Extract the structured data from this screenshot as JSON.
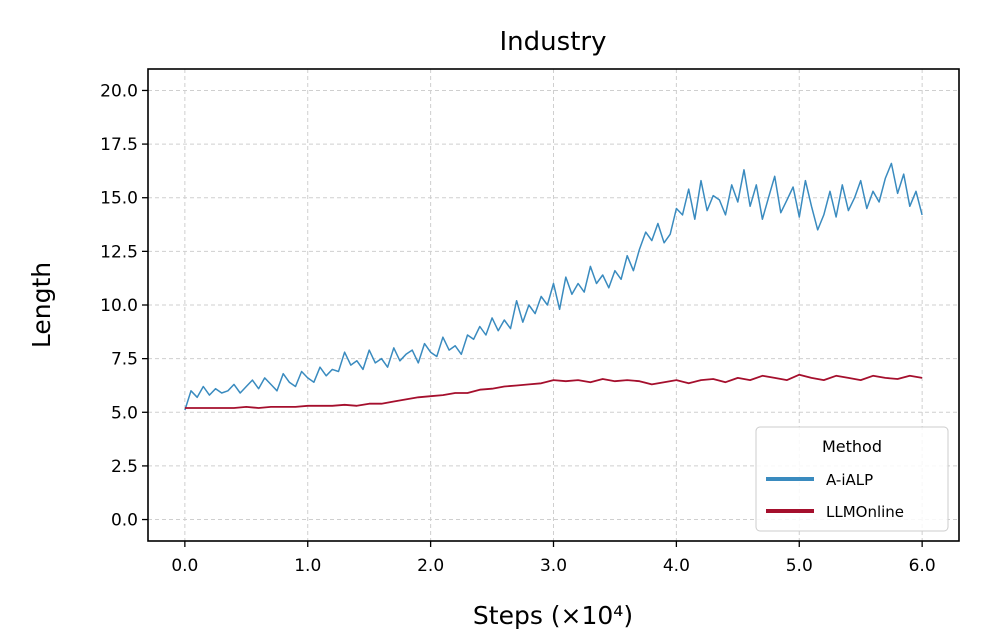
{
  "chart_data": {
    "type": "line",
    "title": "Industry",
    "xlabel": "Steps (×10⁴)",
    "ylabel": "Length",
    "xlim": [
      -0.3,
      6.3
    ],
    "ylim": [
      -1.0,
      21.0
    ],
    "xticks": [
      0.0,
      1.0,
      2.0,
      3.0,
      4.0,
      5.0,
      6.0
    ],
    "xtick_labels": [
      "0.0",
      "1.0",
      "2.0",
      "3.0",
      "4.0",
      "5.0",
      "6.0"
    ],
    "yticks": [
      0.0,
      2.5,
      5.0,
      7.5,
      10.0,
      12.5,
      15.0,
      17.5,
      20.0
    ],
    "ytick_labels": [
      "0.0",
      "2.5",
      "5.0",
      "7.5",
      "10.0",
      "12.5",
      "15.0",
      "17.5",
      "20.0"
    ],
    "grid": true,
    "legend": {
      "title": "Method",
      "position": "lower-right"
    },
    "series": [
      {
        "name": "A-iALP",
        "color": "#3A8BBF",
        "x": [
          0.0,
          0.05,
          0.1,
          0.15,
          0.2,
          0.25,
          0.3,
          0.35,
          0.4,
          0.45,
          0.5,
          0.55,
          0.6,
          0.65,
          0.7,
          0.75,
          0.8,
          0.85,
          0.9,
          0.95,
          1.0,
          1.05,
          1.1,
          1.15,
          1.2,
          1.25,
          1.3,
          1.35,
          1.4,
          1.45,
          1.5,
          1.55,
          1.6,
          1.65,
          1.7,
          1.75,
          1.8,
          1.85,
          1.9,
          1.95,
          2.0,
          2.05,
          2.1,
          2.15,
          2.2,
          2.25,
          2.3,
          2.35,
          2.4,
          2.45,
          2.5,
          2.55,
          2.6,
          2.65,
          2.7,
          2.75,
          2.8,
          2.85,
          2.9,
          2.95,
          3.0,
          3.05,
          3.1,
          3.15,
          3.2,
          3.25,
          3.3,
          3.35,
          3.4,
          3.45,
          3.5,
          3.55,
          3.6,
          3.65,
          3.7,
          3.75,
          3.8,
          3.85,
          3.9,
          3.95,
          4.0,
          4.05,
          4.1,
          4.15,
          4.2,
          4.25,
          4.3,
          4.35,
          4.4,
          4.45,
          4.5,
          4.55,
          4.6,
          4.65,
          4.7,
          4.75,
          4.8,
          4.85,
          4.9,
          4.95,
          5.0,
          5.05,
          5.1,
          5.15,
          5.2,
          5.25,
          5.3,
          5.35,
          5.4,
          5.45,
          5.5,
          5.55,
          5.6,
          5.65,
          5.7,
          5.75,
          5.8,
          5.85,
          5.9,
          5.95,
          6.0
        ],
        "y": [
          5.1,
          6.0,
          5.7,
          6.2,
          5.8,
          6.1,
          5.9,
          6.0,
          6.3,
          5.9,
          6.2,
          6.5,
          6.1,
          6.6,
          6.3,
          6.0,
          6.8,
          6.4,
          6.2,
          6.9,
          6.6,
          6.4,
          7.1,
          6.7,
          7.0,
          6.9,
          7.8,
          7.2,
          7.4,
          7.0,
          7.9,
          7.3,
          7.5,
          7.1,
          8.0,
          7.4,
          7.7,
          7.9,
          7.3,
          8.2,
          7.8,
          7.6,
          8.5,
          7.9,
          8.1,
          7.7,
          8.6,
          8.4,
          9.0,
          8.6,
          9.4,
          8.8,
          9.3,
          8.9,
          10.2,
          9.2,
          10.0,
          9.6,
          10.4,
          10.0,
          11.0,
          9.8,
          11.3,
          10.5,
          11.0,
          10.6,
          11.8,
          11.0,
          11.4,
          10.8,
          11.6,
          11.2,
          12.3,
          11.6,
          12.6,
          13.4,
          13.0,
          13.8,
          12.9,
          13.3,
          14.5,
          14.2,
          15.4,
          14.0,
          15.8,
          14.4,
          15.1,
          14.9,
          14.2,
          15.6,
          14.8,
          16.3,
          14.6,
          15.6,
          14.0,
          15.0,
          16.0,
          14.3,
          14.9,
          15.5,
          14.1,
          15.8,
          14.6,
          13.5,
          14.2,
          15.3,
          14.1,
          15.6,
          14.4,
          15.0,
          15.8,
          14.5,
          15.3,
          14.8,
          15.9,
          16.6,
          15.2,
          16.1,
          14.6,
          15.3,
          14.2
        ]
      },
      {
        "name": "LLMOnline",
        "color": "#A50F2D",
        "x": [
          0.0,
          0.1,
          0.2,
          0.3,
          0.4,
          0.5,
          0.6,
          0.7,
          0.8,
          0.9,
          1.0,
          1.1,
          1.2,
          1.3,
          1.4,
          1.5,
          1.6,
          1.7,
          1.8,
          1.9,
          2.0,
          2.1,
          2.2,
          2.3,
          2.4,
          2.5,
          2.6,
          2.7,
          2.8,
          2.9,
          3.0,
          3.1,
          3.2,
          3.3,
          3.4,
          3.5,
          3.6,
          3.7,
          3.8,
          3.9,
          4.0,
          4.1,
          4.2,
          4.3,
          4.4,
          4.5,
          4.6,
          4.7,
          4.8,
          4.9,
          5.0,
          5.1,
          5.2,
          5.3,
          5.4,
          5.5,
          5.6,
          5.7,
          5.8,
          5.9,
          6.0
        ],
        "y": [
          5.2,
          5.2,
          5.2,
          5.2,
          5.2,
          5.25,
          5.2,
          5.25,
          5.25,
          5.25,
          5.3,
          5.3,
          5.3,
          5.35,
          5.3,
          5.4,
          5.4,
          5.5,
          5.6,
          5.7,
          5.75,
          5.8,
          5.9,
          5.9,
          6.05,
          6.1,
          6.2,
          6.25,
          6.3,
          6.35,
          6.5,
          6.45,
          6.5,
          6.4,
          6.55,
          6.45,
          6.5,
          6.45,
          6.3,
          6.4,
          6.5,
          6.35,
          6.5,
          6.55,
          6.4,
          6.6,
          6.5,
          6.7,
          6.6,
          6.5,
          6.75,
          6.6,
          6.5,
          6.7,
          6.6,
          6.5,
          6.7,
          6.6,
          6.55,
          6.7,
          6.6
        ]
      }
    ]
  }
}
